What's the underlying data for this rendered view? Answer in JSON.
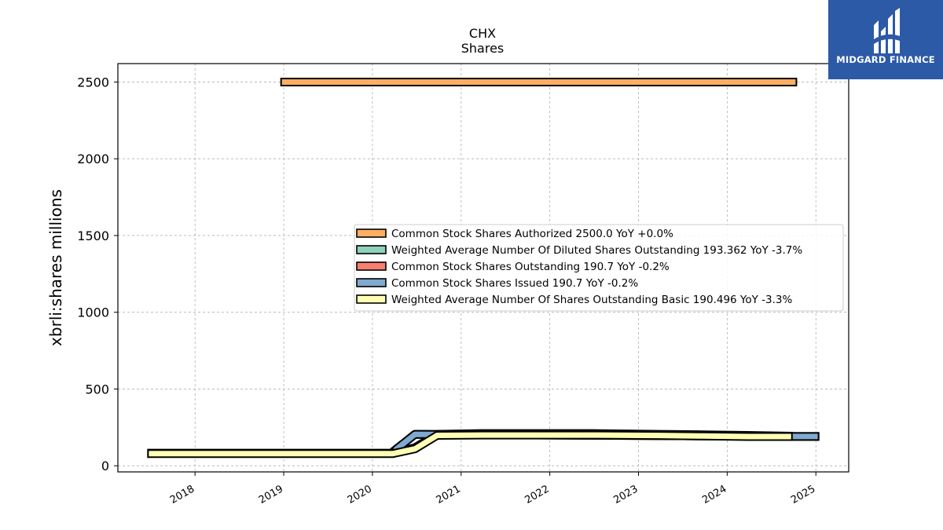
{
  "chart_data": {
    "type": "line",
    "title": "CHX",
    "subtitle": "Shares",
    "ylabel": "xbrli:shares millions",
    "xlabel": "",
    "ylim": [
      -40,
      2620
    ],
    "xlim": [
      2017.13,
      2025.37
    ],
    "yticks": [
      0,
      500,
      1000,
      1500,
      2000,
      2500
    ],
    "xticks": [
      2018,
      2019,
      2020,
      2021,
      2022,
      2023,
      2024,
      2025
    ],
    "grid": true,
    "legend_position": "center-right",
    "series": [
      {
        "name": "Common Stock Shares Authorized  2500.0 YoY +0.0%",
        "color": "#fdae61",
        "x": [
          2018.97,
          2024.78
        ],
        "values": [
          2500,
          2500
        ]
      },
      {
        "name": "Weighted Average Number Of Diluted Shares Outstanding  193.362 YoY -3.7%",
        "color": "#8fd1bb",
        "x": [
          2017.47,
          2020.23,
          2020.48,
          2020.73,
          2021.23,
          2022.48,
          2023.23,
          2023.73,
          2024.23,
          2024.73
        ],
        "values": [
          82,
          82,
          118,
          205,
          210,
          210,
          205,
          202,
          198,
          193
        ]
      },
      {
        "name": "Common Stock Shares Outstanding  190.7 YoY -0.2%",
        "color": "#f87f70",
        "x": [
          2020.23,
          2020.48,
          2024.78,
          2025.03
        ],
        "values": [
          90,
          205,
          191,
          191
        ]
      },
      {
        "name": "Common Stock Shares Issued  190.7 YoY -0.2%",
        "color": "#80a9d0",
        "x": [
          2020.23,
          2020.48,
          2024.78,
          2025.03
        ],
        "values": [
          90,
          205,
          191,
          191
        ]
      },
      {
        "name": "Weighted Average Number Of Shares Outstanding Basic  190.496 YoY -3.3%",
        "color": "#ffffb3",
        "x": [
          2017.47,
          2020.23,
          2020.48,
          2020.73,
          2021.23,
          2022.48,
          2023.23,
          2023.73,
          2024.23,
          2024.73
        ],
        "values": [
          79,
          79,
          110,
          198,
          200,
          200,
          197,
          194,
          190,
          190
        ]
      }
    ]
  },
  "logo": {
    "text": "MIDGARD FINANCE",
    "color": "#2c5aa6"
  }
}
